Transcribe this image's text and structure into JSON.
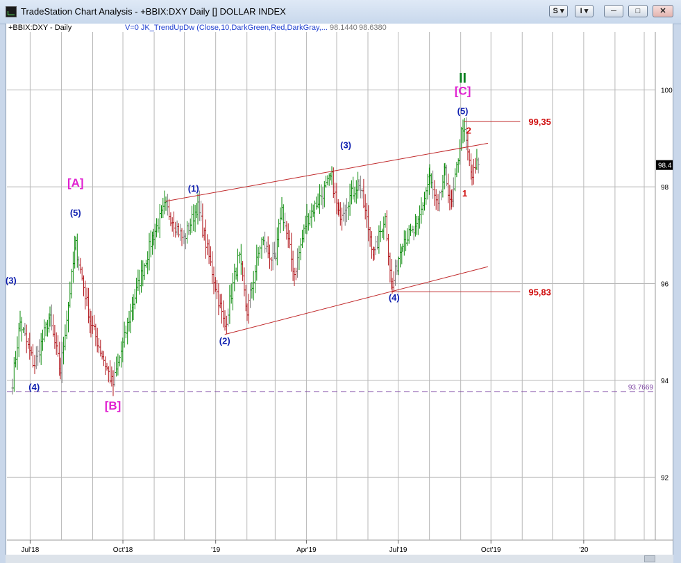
{
  "window": {
    "title": "TradeStation Chart Analysis - +BBIX:DXY Daily [] DOLLAR INDEX",
    "btn_s": "S",
    "btn_i": "I",
    "btn_min_icon": "minimize-icon",
    "btn_max_icon": "maximize-icon",
    "btn_close_icon": "close-icon"
  },
  "header": {
    "symbol": "+BBIX:DXY - Daily",
    "indicator": "V=0  JK_TrendUpDw (Close,10,DarkGreen,Red,DarkGray,...",
    "value1": "98.1440",
    "value2": "98.6380"
  },
  "colors": {
    "up": "#0a8a0a",
    "down": "#b0141a",
    "neutral": "#7a7a7a",
    "channel": "#c0282a",
    "wave_blue": "#1020b0",
    "wave_magenta": "#e020d0",
    "wave_green": "#0a8020",
    "level_red": "#d01010",
    "dashed_line": "#7a40a0",
    "grid": "#b8b8b8"
  },
  "chart_data": {
    "type": "ohlc",
    "title": "",
    "ylim": [
      90.7,
      101.2
    ],
    "y_ticks": [
      "100",
      "98",
      "96",
      "94",
      "92"
    ],
    "x_ticks": [
      "Jul'18",
      "Oct'18",
      "'19",
      "Apr'19",
      "Jul'19",
      "Oct'19",
      "'20"
    ],
    "last_price_label": "98.4",
    "grid": "on",
    "path_points": [
      [
        "2018-06-13",
        93.9
      ],
      [
        "2018-06-21",
        95.2
      ],
      [
        "2018-07-05",
        94.3
      ],
      [
        "2018-07-20",
        95.3
      ],
      [
        "2018-07-31",
        94.2
      ],
      [
        "2018-08-15",
        96.8
      ],
      [
        "2018-08-30",
        95.2
      ],
      [
        "2018-09-21",
        93.9
      ],
      [
        "2018-10-11",
        95.6
      ],
      [
        "2018-10-31",
        97.0
      ],
      [
        "2018-11-12",
        97.6
      ],
      [
        "2018-11-30",
        96.9
      ],
      [
        "2018-12-14",
        97.6
      ],
      [
        "2019-01-10",
        95.1
      ],
      [
        "2019-01-24",
        96.6
      ],
      [
        "2019-02-01",
        95.4
      ],
      [
        "2019-02-15",
        96.9
      ],
      [
        "2019-03-01",
        96.4
      ],
      [
        "2019-03-07",
        97.6
      ],
      [
        "2019-03-20",
        96.2
      ],
      [
        "2019-04-01",
        97.3
      ],
      [
        "2019-04-26",
        98.2
      ],
      [
        "2019-05-03",
        97.4
      ],
      [
        "2019-05-23",
        98.1
      ],
      [
        "2019-06-07",
        96.6
      ],
      [
        "2019-06-18",
        97.4
      ],
      [
        "2019-06-25",
        95.9
      ],
      [
        "2019-07-05",
        96.9
      ],
      [
        "2019-07-19",
        97.1
      ],
      [
        "2019-08-01",
        98.2
      ],
      [
        "2019-08-09",
        97.5
      ],
      [
        "2019-08-16",
        98.3
      ],
      [
        "2019-08-23",
        97.6
      ],
      [
        "2019-09-03",
        99.3
      ],
      [
        "2019-09-12",
        98.2
      ],
      [
        "2019-09-20",
        98.6
      ]
    ],
    "channel_lines": [
      {
        "from": [
          "2018-11-12",
          97.7
        ],
        "to": [
          "2019-09-28",
          98.9
        ]
      },
      {
        "from": [
          "2019-01-10",
          94.95
        ],
        "to": [
          "2019-09-28",
          96.35
        ]
      }
    ],
    "levels": [
      {
        "label": "99,35",
        "value": 99.35,
        "from": "2019-09-04",
        "to": "2019-10-30"
      },
      {
        "label": "95,83",
        "value": 95.83,
        "from": "2019-06-25",
        "to": "2019-10-30"
      }
    ],
    "dashed_level": {
      "value": 93.7669,
      "label": "93.7669"
    },
    "wave_labels": [
      {
        "text": "(3)",
        "date": "2018-06-12",
        "y": 96.0,
        "color": "wave_blue"
      },
      {
        "text": "(4)",
        "date": "2018-07-05",
        "y": 93.8,
        "color": "wave_blue"
      },
      {
        "text": "(5)",
        "date": "2018-08-15",
        "y": 97.4,
        "color": "wave_blue"
      },
      {
        "text": "[A]",
        "date": "2018-08-15",
        "y": 98.0,
        "color": "wave_magenta"
      },
      {
        "text": "[B]",
        "date": "2018-09-21",
        "y": 93.4,
        "color": "wave_magenta"
      },
      {
        "text": "(1)",
        "date": "2018-12-10",
        "y": 97.9,
        "color": "wave_blue"
      },
      {
        "text": "(2)",
        "date": "2019-01-10",
        "y": 94.75,
        "color": "wave_blue"
      },
      {
        "text": "(3)",
        "date": "2019-05-10",
        "y": 98.8,
        "color": "wave_blue"
      },
      {
        "text": "(4)",
        "date": "2019-06-27",
        "y": 95.65,
        "color": "wave_blue"
      },
      {
        "text": "(5)",
        "date": "2019-09-03",
        "y": 99.5,
        "color": "wave_blue"
      },
      {
        "text": "[C]",
        "date": "2019-09-03",
        "y": 99.9,
        "color": "wave_magenta"
      },
      {
        "text": "II",
        "date": "2019-09-03",
        "y": 100.15,
        "color": "wave_green"
      },
      {
        "text": "2",
        "date": "2019-09-09",
        "y": 99.1,
        "color": "level_red"
      },
      {
        "text": "1",
        "date": "2019-09-05",
        "y": 97.8,
        "color": "level_red"
      }
    ]
  }
}
